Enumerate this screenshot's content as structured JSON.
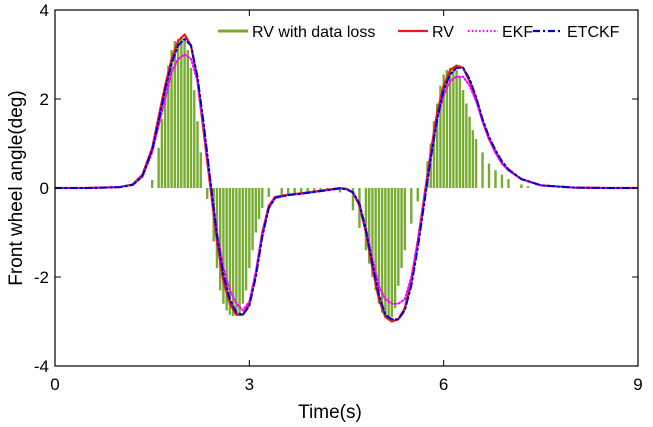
{
  "chart_data": {
    "type": "line",
    "title": "",
    "xlabel": "Time(s)",
    "ylabel": "Front wheel angle(deg)",
    "xlim": [
      0,
      9
    ],
    "ylim": [
      -4,
      4
    ],
    "xticks": [
      0,
      3,
      6,
      9
    ],
    "yticks": [
      -4,
      -2,
      0,
      2,
      4
    ],
    "xtick_labels": [
      "0",
      "3",
      "6",
      "9"
    ],
    "ytick_labels": [
      "-4",
      "-2",
      "0",
      "2",
      "4"
    ],
    "grid": false,
    "legend_position": "top-right",
    "legend": [
      "RV with data loss",
      "RV",
      "EKF",
      "ETCKF"
    ],
    "series": [
      {
        "name": "RV with data loss",
        "style": "stem",
        "color": "#77ac30",
        "x": [
          1.5,
          1.6,
          1.65,
          1.7,
          1.75,
          1.8,
          1.85,
          1.9,
          1.95,
          2.0,
          2.05,
          2.1,
          2.15,
          2.2,
          2.25,
          2.35,
          2.45,
          2.5,
          2.55,
          2.6,
          2.65,
          2.7,
          2.75,
          2.8,
          2.85,
          2.9,
          2.95,
          3.0,
          3.05,
          3.1,
          3.15,
          3.2,
          3.3,
          3.5,
          3.6,
          3.7,
          3.8,
          3.9,
          4.0,
          4.1,
          4.2,
          4.3,
          4.4,
          4.6,
          4.7,
          4.8,
          4.85,
          4.9,
          4.95,
          5.0,
          5.05,
          5.1,
          5.15,
          5.2,
          5.25,
          5.3,
          5.35,
          5.4,
          5.5,
          5.6,
          5.75,
          5.8,
          5.85,
          5.9,
          5.95,
          6.0,
          6.05,
          6.1,
          6.15,
          6.2,
          6.25,
          6.3,
          6.35,
          6.4,
          6.45,
          6.5,
          6.6,
          6.7,
          6.8,
          6.9,
          7.0,
          7.2,
          7.3
        ],
        "values": [
          0.18,
          0.9,
          1.55,
          2.2,
          2.75,
          3.1,
          3.3,
          3.35,
          3.4,
          3.35,
          3.1,
          2.7,
          2.2,
          1.5,
          0.8,
          -0.25,
          -1.2,
          -1.8,
          -2.3,
          -2.6,
          -2.75,
          -2.85,
          -2.88,
          -2.85,
          -2.8,
          -2.6,
          -2.3,
          -1.8,
          -1.4,
          -1.0,
          -0.7,
          -0.45,
          -0.2,
          -0.16,
          -0.15,
          -0.14,
          -0.12,
          -0.1,
          -0.08,
          -0.06,
          -0.04,
          -0.03,
          -0.1,
          -0.5,
          -0.9,
          -1.4,
          -1.7,
          -2.0,
          -2.3,
          -2.6,
          -2.8,
          -2.9,
          -2.95,
          -2.9,
          -2.7,
          -2.2,
          -1.8,
          -1.4,
          -0.8,
          -0.3,
          0.6,
          1.0,
          1.5,
          1.9,
          2.3,
          2.55,
          2.65,
          2.7,
          2.7,
          2.65,
          2.5,
          2.2,
          1.9,
          1.6,
          1.3,
          1.1,
          0.8,
          0.55,
          0.4,
          0.3,
          0.2,
          0.08,
          0.04
        ]
      },
      {
        "name": "RV",
        "style": "solid",
        "color": "#e41a1c",
        "x": [
          0,
          0.5,
          1.0,
          1.2,
          1.35,
          1.5,
          1.6,
          1.7,
          1.8,
          1.9,
          2.0,
          2.1,
          2.2,
          2.3,
          2.4,
          2.5,
          2.6,
          2.7,
          2.8,
          2.9,
          3.0,
          3.1,
          3.2,
          3.3,
          3.4,
          3.6,
          3.8,
          4.0,
          4.2,
          4.4,
          4.5,
          4.6,
          4.7,
          4.8,
          4.9,
          5.0,
          5.1,
          5.2,
          5.3,
          5.4,
          5.5,
          5.6,
          5.7,
          5.8,
          5.9,
          6.0,
          6.1,
          6.2,
          6.3,
          6.4,
          6.5,
          6.6,
          6.7,
          6.8,
          6.9,
          7.0,
          7.2,
          7.5,
          8.0,
          8.5,
          9.0
        ],
        "values": [
          0,
          0,
          0.02,
          0.08,
          0.3,
          0.9,
          1.6,
          2.3,
          2.9,
          3.3,
          3.45,
          3.2,
          2.4,
          1.2,
          0,
          -1.2,
          -2.1,
          -2.6,
          -2.85,
          -2.85,
          -2.6,
          -1.9,
          -1.0,
          -0.4,
          -0.2,
          -0.15,
          -0.12,
          -0.08,
          -0.04,
          0,
          -0.02,
          -0.1,
          -0.4,
          -1.0,
          -1.8,
          -2.5,
          -2.9,
          -3.0,
          -2.95,
          -2.7,
          -2.1,
          -1.2,
          -0.2,
          0.8,
          1.7,
          2.3,
          2.65,
          2.75,
          2.7,
          2.4,
          2.0,
          1.5,
          1.1,
          0.8,
          0.55,
          0.4,
          0.2,
          0.06,
          0.01,
          0,
          0
        ]
      },
      {
        "name": "EKF",
        "style": "dotted",
        "color": "#ff00ff",
        "x": [
          0,
          0.5,
          1.0,
          1.2,
          1.35,
          1.5,
          1.6,
          1.7,
          1.8,
          1.9,
          2.0,
          2.1,
          2.2,
          2.3,
          2.4,
          2.5,
          2.6,
          2.7,
          2.8,
          2.9,
          3.0,
          3.1,
          3.2,
          3.3,
          3.4,
          3.6,
          3.8,
          4.0,
          4.2,
          4.4,
          4.5,
          4.6,
          4.7,
          4.8,
          4.9,
          5.0,
          5.1,
          5.2,
          5.3,
          5.4,
          5.5,
          5.6,
          5.7,
          5.8,
          5.9,
          6.0,
          6.1,
          6.2,
          6.3,
          6.4,
          6.5,
          6.6,
          6.7,
          6.8,
          6.9,
          7.0,
          7.2,
          7.5,
          8.0,
          8.5,
          9.0
        ],
        "values": [
          0,
          0,
          0.02,
          0.07,
          0.25,
          0.8,
          1.4,
          2.0,
          2.6,
          2.9,
          3.0,
          2.9,
          2.4,
          1.3,
          0.1,
          -1.0,
          -1.8,
          -2.3,
          -2.6,
          -2.75,
          -2.55,
          -1.9,
          -1.05,
          -0.45,
          -0.22,
          -0.16,
          -0.13,
          -0.09,
          -0.05,
          -0.01,
          -0.03,
          -0.1,
          -0.35,
          -0.9,
          -1.6,
          -2.2,
          -2.5,
          -2.6,
          -2.6,
          -2.5,
          -2.0,
          -1.2,
          -0.3,
          0.7,
          1.55,
          2.1,
          2.4,
          2.5,
          2.5,
          2.3,
          1.95,
          1.5,
          1.1,
          0.8,
          0.55,
          0.4,
          0.2,
          0.06,
          0.01,
          0,
          0
        ]
      },
      {
        "name": "ETCKF",
        "style": "dashdot",
        "color": "#0000cd",
        "x": [
          0,
          0.5,
          1.0,
          1.2,
          1.35,
          1.5,
          1.6,
          1.7,
          1.8,
          1.9,
          2.0,
          2.1,
          2.2,
          2.3,
          2.4,
          2.5,
          2.6,
          2.7,
          2.8,
          2.9,
          3.0,
          3.1,
          3.2,
          3.3,
          3.4,
          3.6,
          3.8,
          4.0,
          4.2,
          4.4,
          4.5,
          4.6,
          4.7,
          4.8,
          4.9,
          5.0,
          5.1,
          5.2,
          5.3,
          5.4,
          5.5,
          5.6,
          5.7,
          5.8,
          5.9,
          6.0,
          6.1,
          6.2,
          6.3,
          6.4,
          6.5,
          6.6,
          6.7,
          6.8,
          6.9,
          7.0,
          7.2,
          7.5,
          8.0,
          8.5,
          9.0
        ],
        "values": [
          0,
          0,
          0.02,
          0.07,
          0.27,
          0.85,
          1.5,
          2.2,
          2.8,
          3.2,
          3.35,
          3.2,
          2.5,
          1.4,
          0.15,
          -1.05,
          -1.95,
          -2.5,
          -2.8,
          -2.85,
          -2.65,
          -2.0,
          -1.1,
          -0.45,
          -0.22,
          -0.16,
          -0.13,
          -0.09,
          -0.05,
          -0.01,
          -0.03,
          -0.1,
          -0.35,
          -0.95,
          -1.7,
          -2.4,
          -2.85,
          -2.95,
          -2.95,
          -2.75,
          -2.2,
          -1.35,
          -0.35,
          0.65,
          1.55,
          2.2,
          2.55,
          2.7,
          2.7,
          2.45,
          2.05,
          1.55,
          1.15,
          0.85,
          0.6,
          0.42,
          0.2,
          0.06,
          0.01,
          0,
          0
        ]
      }
    ]
  }
}
